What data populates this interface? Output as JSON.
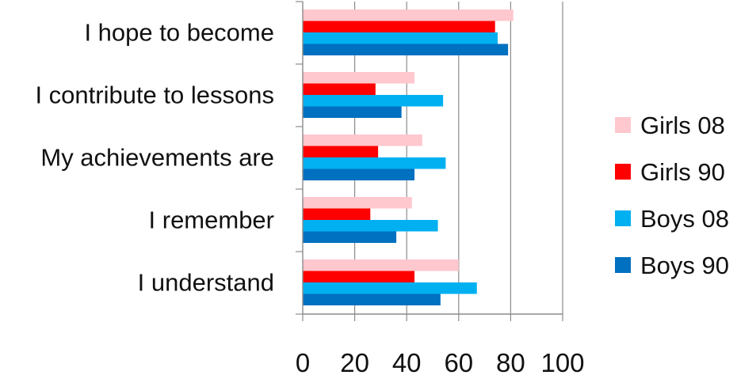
{
  "chart_data": {
    "type": "bar",
    "orientation": "horizontal",
    "categories": [
      "I hope to become",
      "I contribute to lessons",
      "My achievements are",
      "I remember",
      "I understand"
    ],
    "series": [
      {
        "name": "Girls 08",
        "color": "#ffc7ce",
        "values": [
          81,
          43,
          46,
          42,
          60
        ]
      },
      {
        "name": "Girls 90",
        "color": "#ff0000",
        "values": [
          74,
          28,
          29,
          26,
          43
        ]
      },
      {
        "name": "Boys 08",
        "color": "#00b0f0",
        "values": [
          75,
          54,
          55,
          52,
          67
        ]
      },
      {
        "name": "Boys 90",
        "color": "#0070c0",
        "values": [
          79,
          38,
          43,
          36,
          53
        ]
      }
    ],
    "x_ticks": [
      "0",
      "20",
      "40",
      "60",
      "80",
      "100"
    ],
    "xlim": [
      0,
      100
    ],
    "grid": true,
    "legend_position": "right"
  }
}
